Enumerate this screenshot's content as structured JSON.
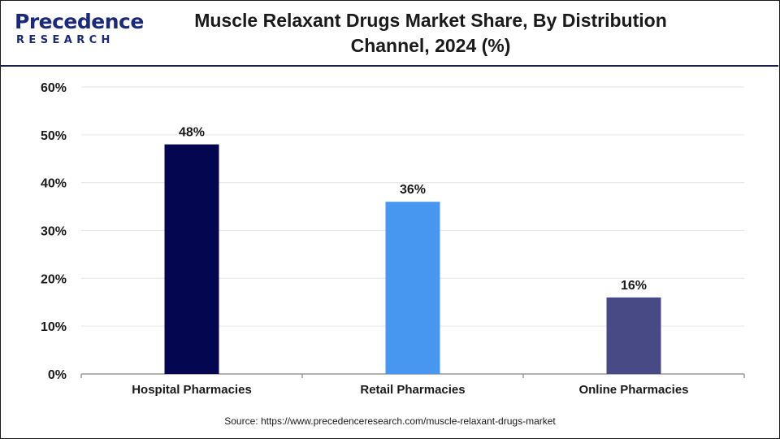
{
  "logo": {
    "name": "Precedence",
    "sub": "RESEARCH"
  },
  "title_line1": "Muscle Relaxant Drugs Market Share, By Distribution",
  "title_line2": "Channel, 2024 (%)",
  "source": "Source: https://www.precedenceresearch.com/muscle-relaxant-drugs-market",
  "colors": {
    "logo": "#1b2a78",
    "grid": "#e6e6e6",
    "axis": "#9a9a9a",
    "text": "#1a1a1a"
  },
  "chart_data": {
    "type": "bar",
    "title": "Muscle Relaxant Drugs Market Share, By Distribution Channel, 2024 (%)",
    "categories": [
      "Hospital Pharmacies",
      "Retail Pharmacies",
      "Online Pharmacies"
    ],
    "values": [
      48,
      36,
      16
    ],
    "value_labels": [
      "48%",
      "36%",
      "16%"
    ],
    "bar_colors": [
      "#04074f",
      "#4796f0",
      "#484a86"
    ],
    "ylim": [
      0,
      60
    ],
    "yticks": [
      0,
      10,
      20,
      30,
      40,
      50,
      60
    ],
    "ytick_labels": [
      "0%",
      "10%",
      "20%",
      "30%",
      "40%",
      "50%",
      "60%"
    ],
    "xlabel": "",
    "ylabel": "",
    "grid": true,
    "legend": "none"
  }
}
